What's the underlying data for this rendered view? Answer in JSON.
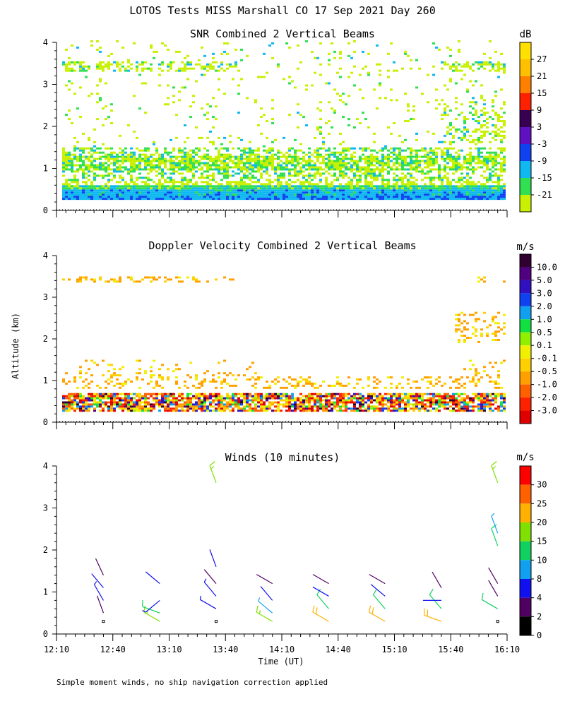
{
  "title": "LOTOS Tests MISS Marshall CO  17 Sep 2021 Day 260",
  "ylabel": "Altitude (km)",
  "xlabel": "Time (UT)",
  "footnote": "Simple moment winds, no ship navigation correction applied",
  "x_ticks": [
    "12:10",
    "12:40",
    "13:10",
    "13:40",
    "14:10",
    "14:40",
    "15:10",
    "15:40",
    "16:10"
  ],
  "y_ticks": [
    "0",
    "1",
    "2",
    "3",
    "4"
  ],
  "chart_data": [
    {
      "type": "heatmap",
      "title": "SNR Combined 2 Vertical Beams",
      "xlabel": "Time (UT)",
      "ylabel": "Altitude (km)",
      "xlim": [
        "12:10",
        "16:10"
      ],
      "ylim": [
        0,
        4
      ],
      "colorbar_unit": "dB",
      "colorbar_labels": [
        "-21",
        "-15",
        "-9",
        "-3",
        "3",
        "9",
        "15",
        "21",
        "27"
      ],
      "colorbar_colors": [
        "#c8f000",
        "#30e050",
        "#10b8f0",
        "#1040f0",
        "#6010c0",
        "#380050",
        "#ff2000",
        "#ff8000",
        "#ffc000",
        "#ffe000"
      ],
      "features": [
        {
          "altitude_km": [
            0.25,
            0.6
          ],
          "value_range_db": [
            -15,
            3
          ],
          "coverage": "continuous"
        },
        {
          "altitude_km": [
            0.7,
            1.5
          ],
          "value_range_db": [
            -21,
            -3
          ],
          "coverage": "broken layer"
        },
        {
          "altitude_km": [
            1.5,
            4.0
          ],
          "value_range_db": [
            -21,
            -9
          ],
          "coverage": "scattered"
        }
      ]
    },
    {
      "type": "heatmap",
      "title": "Doppler Velocity Combined 2 Vertical Beams",
      "xlabel": "Time (UT)",
      "ylabel": "Altitude (km)",
      "xlim": [
        "12:10",
        "16:10"
      ],
      "ylim": [
        0,
        4
      ],
      "colorbar_unit": "m/s",
      "colorbar_labels": [
        "10.0",
        "5.0",
        "3.0",
        "2.0",
        "1.0",
        "0.5",
        "0.1",
        "-0.1",
        "-0.5",
        "-1.0",
        "-2.0",
        "-3.0"
      ],
      "colorbar_colors": [
        "#300030",
        "#500080",
        "#3010c0",
        "#1040f0",
        "#10a0f0",
        "#10e040",
        "#90f000",
        "#f0f000",
        "#ffd000",
        "#ffa000",
        "#ff6000",
        "#ff2000",
        "#e00000"
      ],
      "features": [
        {
          "altitude_km": [
            0.25,
            0.7
          ],
          "value_range_ms": [
            -3.0,
            10.0
          ],
          "coverage": "continuous, mixed"
        },
        {
          "altitude_km": [
            0.8,
            1.5
          ],
          "value_range_ms": [
            -1.0,
            0.1
          ],
          "coverage": "scattered"
        },
        {
          "altitude_km": [
            2.0,
            3.4
          ],
          "value_range_ms": [
            -2.0,
            0.1
          ],
          "coverage": "sparse"
        }
      ]
    },
    {
      "type": "wind-barbs",
      "title": "Winds (10 minutes)",
      "xlabel": "Time (UT)",
      "ylabel": "Altitude (km)",
      "xlim": [
        "12:10",
        "16:10"
      ],
      "ylim": [
        0,
        4
      ],
      "colorbar_unit": "m/s",
      "colorbar_labels": [
        "30",
        "25",
        "20",
        "15",
        "10",
        "8",
        "4",
        "2",
        "0"
      ],
      "colorbar_colors": [
        "#ff0000",
        "#ff6000",
        "#ffb000",
        "#80e000",
        "#10d060",
        "#10a0f0",
        "#1010f0",
        "#500060",
        "#000000"
      ],
      "profiles": [
        {
          "time": "12:35",
          "winds": [
            {
              "alt": 0.3,
              "speed": 1,
              "dir": 0
            },
            {
              "alt": 0.5,
              "speed": 3,
              "dir": 340
            },
            {
              "alt": 0.8,
              "speed": 5,
              "dir": 330
            },
            {
              "alt": 1.1,
              "speed": 4,
              "dir": 320
            },
            {
              "alt": 1.4,
              "speed": 3,
              "dir": 335
            }
          ]
        },
        {
          "time": "13:05",
          "winds": [
            {
              "alt": 0.3,
              "speed": 18,
              "dir": 300
            },
            {
              "alt": 0.5,
              "speed": 12,
              "dir": 290
            },
            {
              "alt": 0.8,
              "speed": 5,
              "dir": 230
            },
            {
              "alt": 1.2,
              "speed": 4,
              "dir": 310
            }
          ]
        },
        {
          "time": "13:35",
          "winds": [
            {
              "alt": 0.3,
              "speed": 1,
              "dir": 0
            },
            {
              "alt": 0.6,
              "speed": 6,
              "dir": 300
            },
            {
              "alt": 0.9,
              "speed": 5,
              "dir": 320
            },
            {
              "alt": 1.2,
              "speed": 3,
              "dir": 320
            },
            {
              "alt": 1.6,
              "speed": 4,
              "dir": 340
            },
            {
              "alt": 3.6,
              "speed": 18,
              "dir": 340
            }
          ]
        },
        {
          "time": "14:05",
          "winds": [
            {
              "alt": 0.3,
              "speed": 18,
              "dir": 300
            },
            {
              "alt": 0.5,
              "speed": 9,
              "dir": 310
            },
            {
              "alt": 0.8,
              "speed": 4,
              "dir": 320
            },
            {
              "alt": 1.2,
              "speed": 3,
              "dir": 300
            }
          ]
        },
        {
          "time": "14:35",
          "winds": [
            {
              "alt": 0.3,
              "speed": 20,
              "dir": 300
            },
            {
              "alt": 0.6,
              "speed": 13,
              "dir": 320
            },
            {
              "alt": 0.9,
              "speed": 4,
              "dir": 300
            },
            {
              "alt": 1.2,
              "speed": 3,
              "dir": 300
            }
          ]
        },
        {
          "time": "15:05",
          "winds": [
            {
              "alt": 0.3,
              "speed": 20,
              "dir": 300
            },
            {
              "alt": 0.6,
              "speed": 14,
              "dir": 320
            },
            {
              "alt": 0.9,
              "speed": 4,
              "dir": 310
            },
            {
              "alt": 1.2,
              "speed": 3,
              "dir": 300
            }
          ]
        },
        {
          "time": "15:35",
          "winds": [
            {
              "alt": 0.3,
              "speed": 20,
              "dir": 290
            },
            {
              "alt": 0.6,
              "speed": 14,
              "dir": 320
            },
            {
              "alt": 0.8,
              "speed": 4,
              "dir": 270
            },
            {
              "alt": 1.1,
              "speed": 3,
              "dir": 330
            }
          ]
        },
        {
          "time": "16:05",
          "winds": [
            {
              "alt": 0.3,
              "speed": 1,
              "dir": 0
            },
            {
              "alt": 0.6,
              "speed": 10,
              "dir": 300
            },
            {
              "alt": 0.9,
              "speed": 3,
              "dir": 330
            },
            {
              "alt": 1.2,
              "speed": 3,
              "dir": 330
            },
            {
              "alt": 2.1,
              "speed": 10,
              "dir": 340
            },
            {
              "alt": 2.4,
              "speed": 8,
              "dir": 340
            },
            {
              "alt": 3.6,
              "speed": 18,
              "dir": 340
            }
          ]
        }
      ]
    }
  ]
}
